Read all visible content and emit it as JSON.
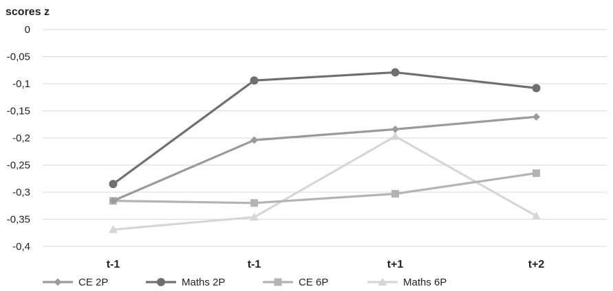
{
  "chart_data": {
    "type": "line",
    "ylabel": "scores z",
    "categories": [
      "t-1",
      "t-1",
      "t+1",
      "t+2"
    ],
    "ylim": [
      -0.4,
      0
    ],
    "yticks": [
      0,
      -0.05,
      -0.1,
      -0.15,
      -0.2,
      -0.25,
      -0.3,
      -0.35,
      -0.4
    ],
    "ytick_labels": [
      "0",
      "-0,05",
      "-0,1",
      "-0,15",
      "-0,2",
      "-0,25",
      "-0,3",
      "-0,35",
      "-0,4"
    ],
    "grid": true,
    "legend_position": "bottom",
    "series": [
      {
        "name": "CE 2P",
        "marker": "diamond",
        "color": "#9a9a9a",
        "values": [
          -0.316,
          -0.204,
          -0.184,
          -0.161
        ]
      },
      {
        "name": "Maths 2P",
        "marker": "circle",
        "color": "#6f6f6f",
        "values": [
          -0.285,
          -0.094,
          -0.079,
          -0.108
        ]
      },
      {
        "name": "CE 6P",
        "marker": "square",
        "color": "#b3b3b3",
        "values": [
          -0.316,
          -0.32,
          -0.303,
          -0.265
        ]
      },
      {
        "name": "Maths 6P",
        "marker": "triangle",
        "color": "#d6d6d6",
        "values": [
          -0.369,
          -0.346,
          -0.197,
          -0.344
        ]
      }
    ]
  }
}
